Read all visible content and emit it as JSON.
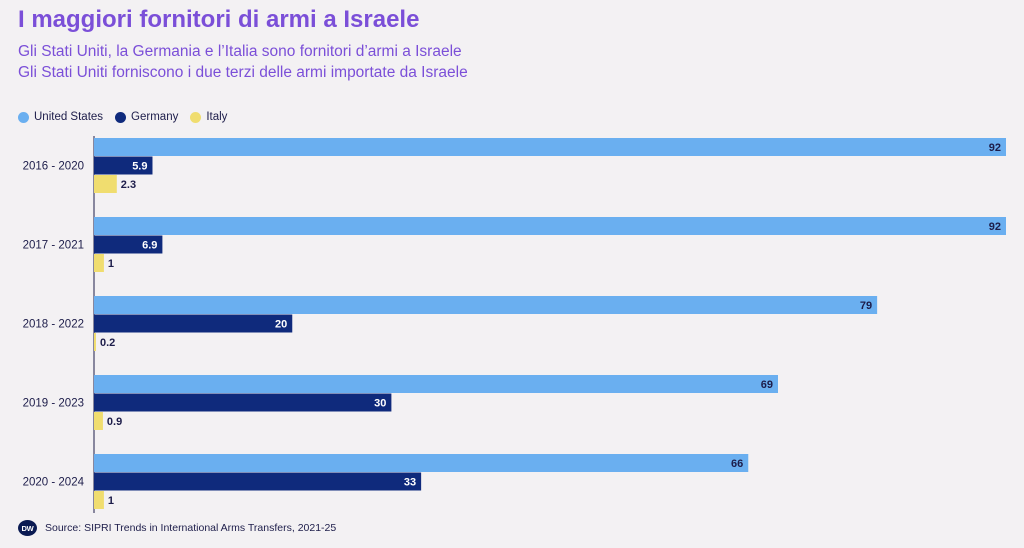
{
  "title": "I maggiori fornitori di armi a Israele",
  "subtitle_line1": "Gli Stati Uniti, la Germania e l’Italia sono fornitori d’armi a Israele",
  "subtitle_line2": "Gli Stati Uniti forniscono i due terzi delle armi importate da Israele",
  "source": "Source: SIPRI Trends in International Arms Transfers, 2021-25",
  "logo_text": "DW",
  "colors": {
    "united_states": "#6aaff0",
    "germany": "#0f2a7c",
    "italy": "#f0dd6f",
    "title": "#7b4fd8"
  },
  "chart_data": {
    "type": "bar",
    "orientation": "horizontal",
    "categories": [
      "2016 - 2020",
      "2017 - 2021",
      "2018 - 2022",
      "2019 - 2023",
      "2020 - 2024"
    ],
    "series": [
      {
        "name": "United States",
        "values": [
          92,
          92,
          79,
          69,
          66
        ]
      },
      {
        "name": "Germany",
        "values": [
          5.9,
          6.9,
          20,
          30,
          33
        ]
      },
      {
        "name": "Italy",
        "values": [
          2.3,
          1,
          0.2,
          0.9,
          1
        ]
      }
    ],
    "xlim": [
      0,
      92
    ],
    "legend": "top-left",
    "grid": false
  }
}
